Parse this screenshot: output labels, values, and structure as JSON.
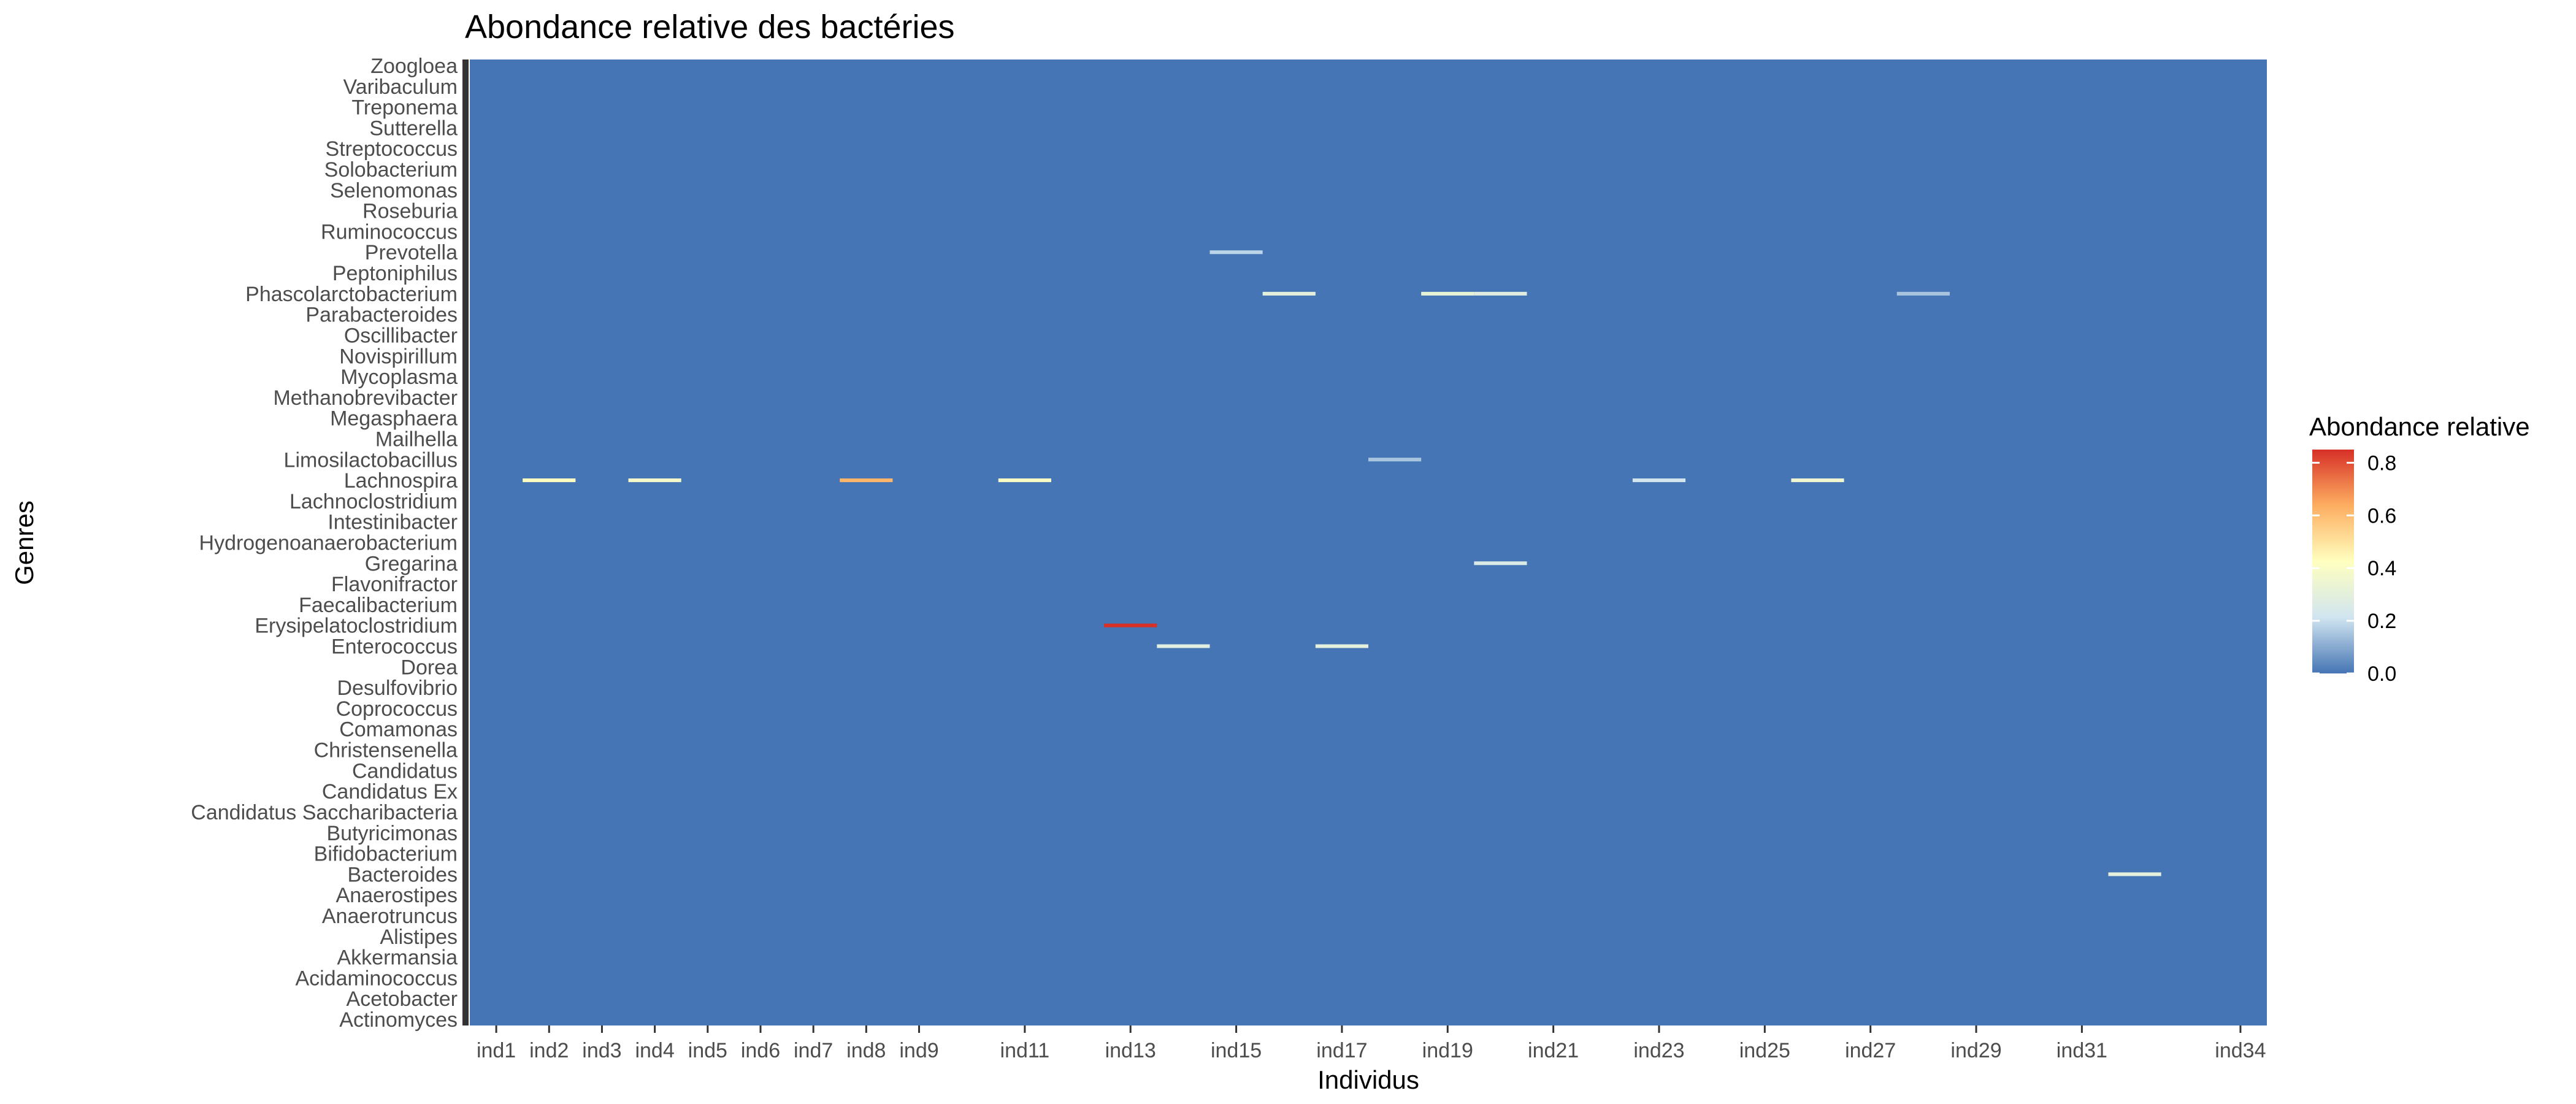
{
  "chart_data": {
    "type": "heatmap",
    "title": "Abondance relative des bactéries",
    "xlabel": "Individus",
    "ylabel": "Genres",
    "x_tick_labels": [
      "ind1",
      "ind2",
      "ind3",
      "ind4",
      "ind5",
      "ind6",
      "ind7",
      "ind8",
      "ind9",
      "ind11",
      "ind13",
      "ind15",
      "ind17",
      "ind19",
      "ind21",
      "ind23",
      "ind25",
      "ind27",
      "ind29",
      "ind31",
      "ind34"
    ],
    "y_tick_labels_visible": [
      "Zoogloea",
      "Varibaculum",
      "Treponema",
      "Sutterella",
      "Streptococcus",
      "Solobacterium",
      "Selenomonas",
      "Roseburia",
      "Ruminococcus",
      "Prevotella",
      "Peptoniphilus",
      "Phascolarctobacterium",
      "Parabacteroides",
      "Oscillibacter",
      "Novispirillum",
      "Mycoplasma",
      "Methanobrevibacter",
      "Megasphaera",
      "Mailhella",
      "Limosilactobacillus",
      "Lachnospira",
      "Lachnoclostridium",
      "Intestinibacter",
      "Hydrogenoanaerobacterium",
      "Gregarina",
      "Flavonifractor",
      "Faecalibacterium",
      "Erysipelatoclostridium",
      "Enterococcus",
      "Dorea",
      "Desulfovibrio",
      "Coprococcus",
      "Comamonas",
      "Christensenella",
      "Candidatus",
      "Candidatus Ex",
      "Candidatus Saccharibacteria",
      "Butyricimonas",
      "Bifidobacterium",
      "Bacteroides",
      "Anaerostipes",
      "Anaerotruncus",
      "Alistipes",
      "Akkermansia",
      "Acidaminococcus",
      "Acetobacter",
      "Actinomyces"
    ],
    "legend": {
      "title": "Abondance relative",
      "labels": [
        "0.8",
        "0.6",
        "0.4",
        "0.2",
        "0.0"
      ],
      "min": 0,
      "max": 0.85,
      "placement": "right"
    },
    "colors": {
      "low": "#4575b4",
      "mid_low": "#d1e5f0",
      "mid": "#ffffbf",
      "mid_high": "#fdae61",
      "high": "#d73027"
    },
    "background_value": 0,
    "highlights": [
      {
        "x": "ind13",
        "genus": "Erysipelatoclostridium",
        "value": 0.85
      },
      {
        "x": "ind8",
        "genus": "Lachnospira",
        "value": 0.62
      },
      {
        "x": "ind2",
        "genus": "Lachnospira",
        "value": 0.42
      },
      {
        "x": "ind4",
        "genus": "Lachnospira",
        "value": 0.38
      },
      {
        "x": "ind11",
        "genus": "Lachnospira",
        "value": 0.4
      },
      {
        "x": "ind26",
        "genus": "Lachnospira",
        "value": 0.35
      },
      {
        "x": "ind16",
        "genus": "Phascolarctobacterium",
        "value": 0.3
      },
      {
        "x": "ind19",
        "genus": "Phascolarctobacterium",
        "value": 0.32
      },
      {
        "x": "ind20",
        "genus": "Phascolarctobacterium",
        "value": 0.28
      },
      {
        "x": "ind17",
        "genus": "Enterococcus",
        "value": 0.3
      },
      {
        "x": "ind14",
        "genus": "Enterococcus",
        "value": 0.28
      },
      {
        "x": "ind20",
        "genus": "Gregarina",
        "value": 0.25
      },
      {
        "x": "ind32",
        "genus": "Bacteroides",
        "value": 0.3
      },
      {
        "x": "ind15",
        "genus": "Prevotella",
        "value": 0.18
      },
      {
        "x": "ind28",
        "genus": "Phascolarctobacterium",
        "value": 0.15
      },
      {
        "x": "ind23",
        "genus": "Lachnospira",
        "value": 0.22
      },
      {
        "x": "ind18",
        "genus": "Limosilactobacillus",
        "value": 0.15
      }
    ]
  }
}
